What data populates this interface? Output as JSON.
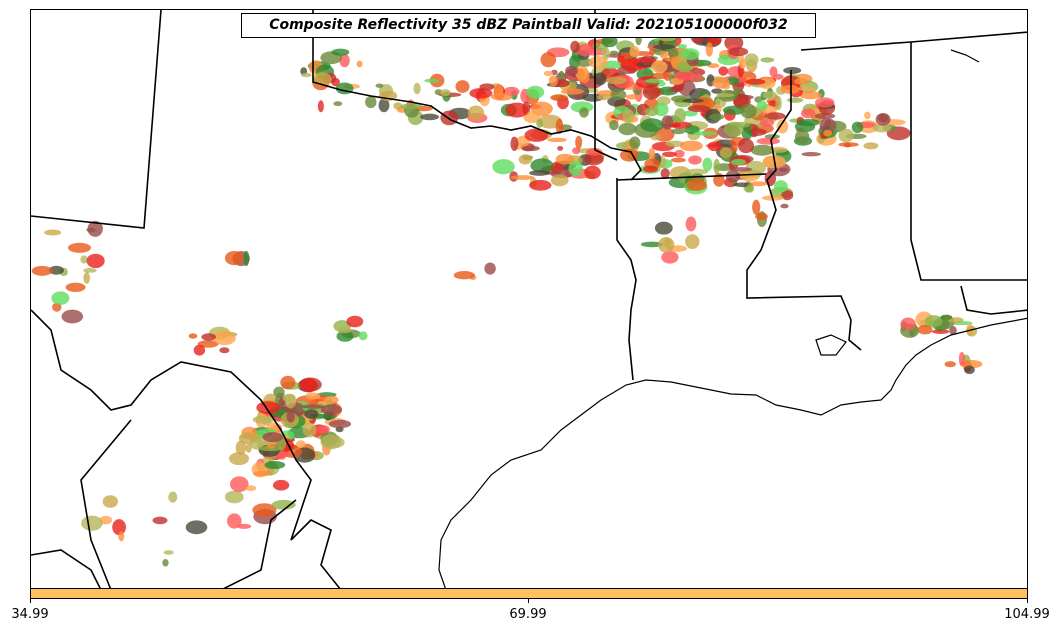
{
  "title": "Composite Reflectivity 35 dBZ Paintball Valid: 202105100000f032",
  "colorbar": {
    "color": "#ffc060",
    "ticks": [
      "34.99",
      "69.99",
      "104.99"
    ]
  },
  "paint_colors": [
    "#e8221c",
    "#ff5a5a",
    "#ff8c3a",
    "#ffa54f",
    "#e85a1a",
    "#2f8a2f",
    "#5fdc5f",
    "#8fb34a",
    "#b5b55a",
    "#9a4a4a",
    "#c0302a",
    "#4a4a3a",
    "#6a8a3a",
    "#c9a84a"
  ],
  "map": {
    "features": [
      "state-borders",
      "coastline",
      "reflectivity-paintball"
    ]
  }
}
